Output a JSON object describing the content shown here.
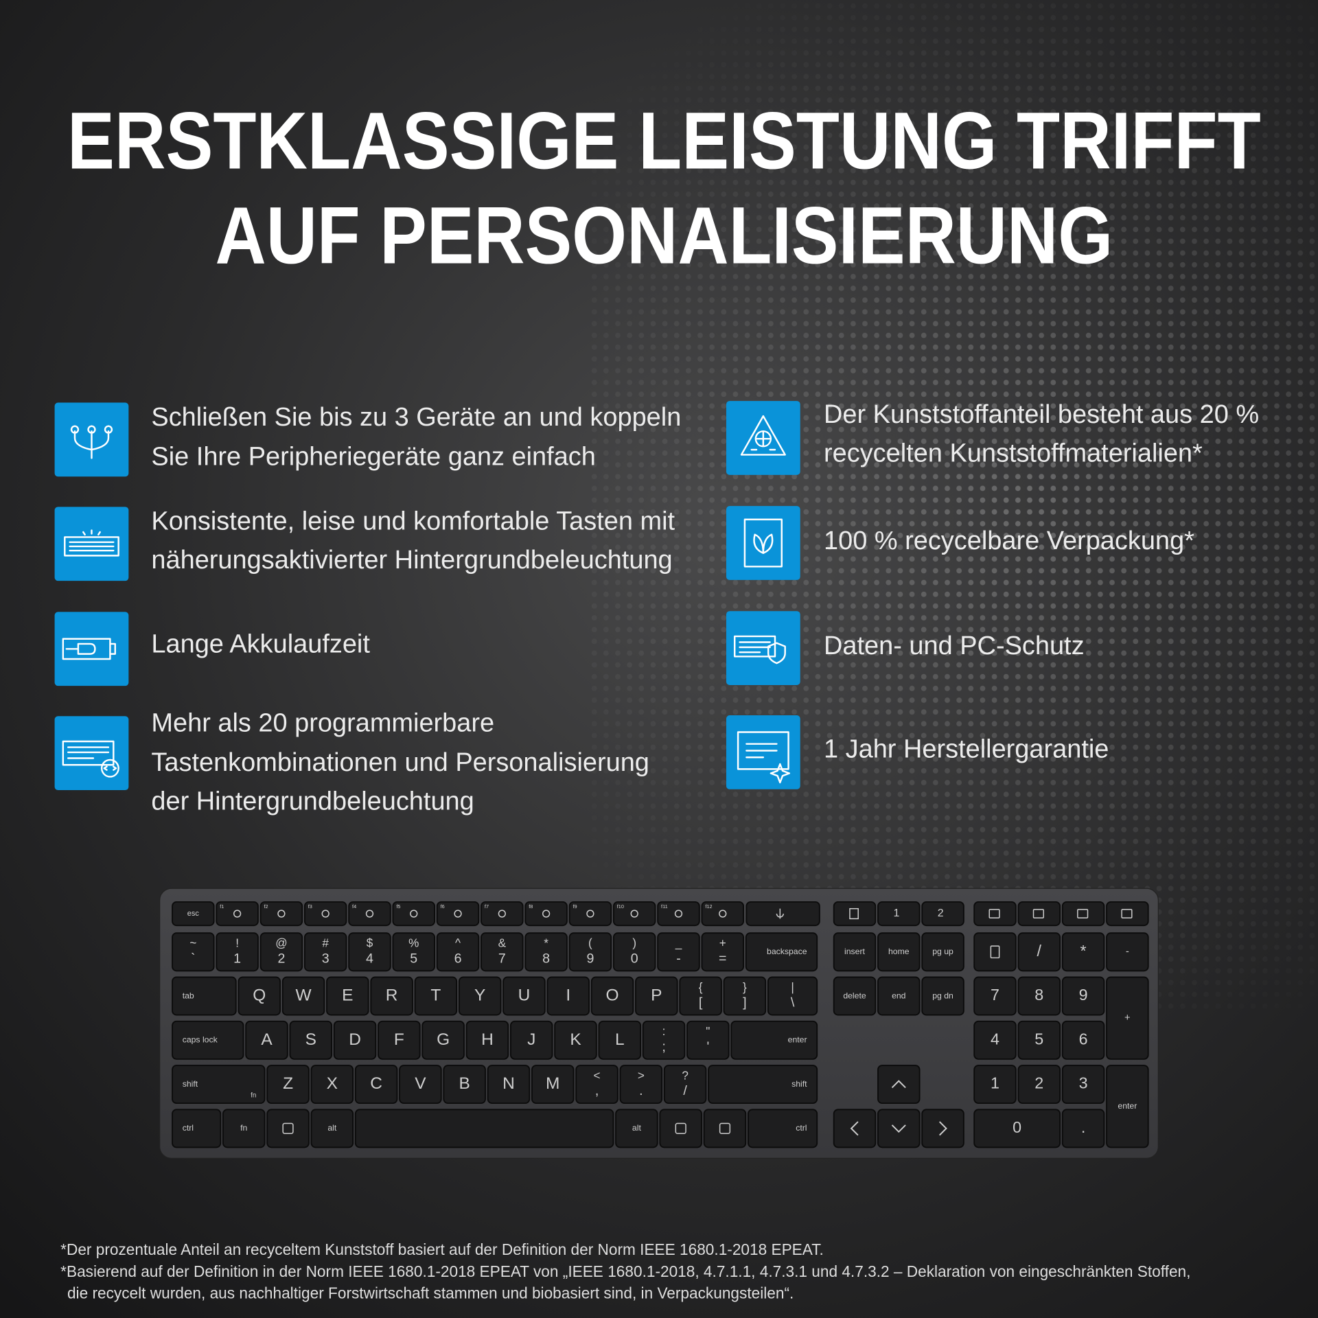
{
  "title": {
    "lines": [
      "ERSTKLASSIGE LEISTUNG TRIFFT",
      "AUF PERSONALISIERUNG"
    ]
  },
  "features_left": [
    {
      "lines": [
        "Schließen Sie bis zu 3 Geräte an und koppeln",
        "Sie Ihre Peripheriegeräte ganz einfach"
      ]
    },
    {
      "lines": [
        "Konsistente, leise und komfortable Tasten mit",
        "näherungsaktivierter Hintergrundbeleuchtung"
      ]
    },
    {
      "lines": [
        "Lange Akkulaufzeit"
      ]
    },
    {
      "lines": [
        "Mehr als 20 programmierbare",
        "Tastenkombinationen und Personalisierung",
        "der Hintergrundbeleuchtung"
      ]
    }
  ],
  "features_right": [
    {
      "lines": [
        "Der Kunststoffanteil besteht aus 20 %",
        "recycelten Kunststoffmaterialien*"
      ]
    },
    {
      "lines": [
        "100 % recycelbare Verpackung*"
      ]
    },
    {
      "lines": [
        "Daten- und PC-Schutz"
      ]
    },
    {
      "lines": [
        "1 Jahr Herstellergarantie"
      ]
    }
  ],
  "keyboard": {
    "function_row": [
      "esc",
      "f1",
      "f2",
      "f3",
      "f4",
      "f5",
      "f6",
      "f7",
      "f8",
      "f9",
      "f10",
      "f11",
      "f12"
    ],
    "nav_top": [
      "1",
      "2"
    ],
    "rows": [
      [
        [
          "~",
          "`"
        ],
        [
          "!",
          "1"
        ],
        [
          "@",
          "2"
        ],
        [
          "#",
          "3"
        ],
        [
          "$",
          "4"
        ],
        [
          "%",
          "5"
        ],
        [
          "^",
          "6"
        ],
        [
          "&",
          "7"
        ],
        [
          "*",
          "8"
        ],
        [
          "(",
          "9"
        ],
        [
          ")",
          "0"
        ],
        [
          "_",
          "-"
        ],
        [
          "+",
          "="
        ],
        [
          "backspace"
        ]
      ],
      [
        [
          "tab"
        ],
        [
          "Q"
        ],
        [
          "W"
        ],
        [
          "E"
        ],
        [
          "R"
        ],
        [
          "T"
        ],
        [
          "Y"
        ],
        [
          "U"
        ],
        [
          "I"
        ],
        [
          "O"
        ],
        [
          "P"
        ],
        [
          "{",
          "["
        ],
        [
          "}",
          "]"
        ],
        [
          "|",
          "\\"
        ]
      ],
      [
        [
          "caps lock"
        ],
        [
          "A"
        ],
        [
          "S"
        ],
        [
          "D"
        ],
        [
          "F"
        ],
        [
          "G"
        ],
        [
          "H"
        ],
        [
          "J"
        ],
        [
          "K"
        ],
        [
          "L"
        ],
        [
          ":",
          ";"
        ],
        [
          "\"",
          "'"
        ],
        [
          "enter"
        ]
      ],
      [
        [
          "shift",
          "fn"
        ],
        [
          "Z"
        ],
        [
          "X"
        ],
        [
          "C"
        ],
        [
          "V"
        ],
        [
          "B"
        ],
        [
          "N"
        ],
        [
          "M"
        ],
        [
          "<",
          ","
        ],
        [
          ">",
          "."
        ],
        [
          "?",
          "/"
        ],
        [
          "shift"
        ]
      ],
      [
        [
          "ctrl"
        ],
        [
          "fn"
        ],
        null,
        [
          "alt"
        ],
        null,
        [
          "alt"
        ],
        null,
        null,
        [
          "ctrl"
        ]
      ]
    ],
    "nav_rows": [
      [
        "insert",
        "home",
        "pg up"
      ],
      [
        "delete",
        "end",
        "pg dn"
      ]
    ],
    "numpad": [
      [
        null,
        "/",
        "*",
        "-"
      ],
      [
        "7",
        "8",
        "9",
        "+"
      ],
      [
        "4",
        "5",
        "6"
      ],
      [
        "1",
        "2",
        "3",
        "enter"
      ],
      [
        "0",
        "."
      ]
    ]
  },
  "footnotes": [
    "*Der prozentuale Anteil an recyceltem Kunststoff basiert auf der Definition der Norm IEEE 1680.1-2018 EPEAT.",
    "*Basierend auf der Definition in der Norm IEEE 1680.1-2018 EPEAT von „IEEE 1680.1-2018, 4.7.1.1, 4.7.3.1 und 4.7.3.2 – Deklaration von eingeschränkten Stoffen,",
    "die recycelt wurden, aus nachhaltiger Forstwirtschaft stammen und biobasiert sind, in Verpackungsteilen“."
  ]
}
